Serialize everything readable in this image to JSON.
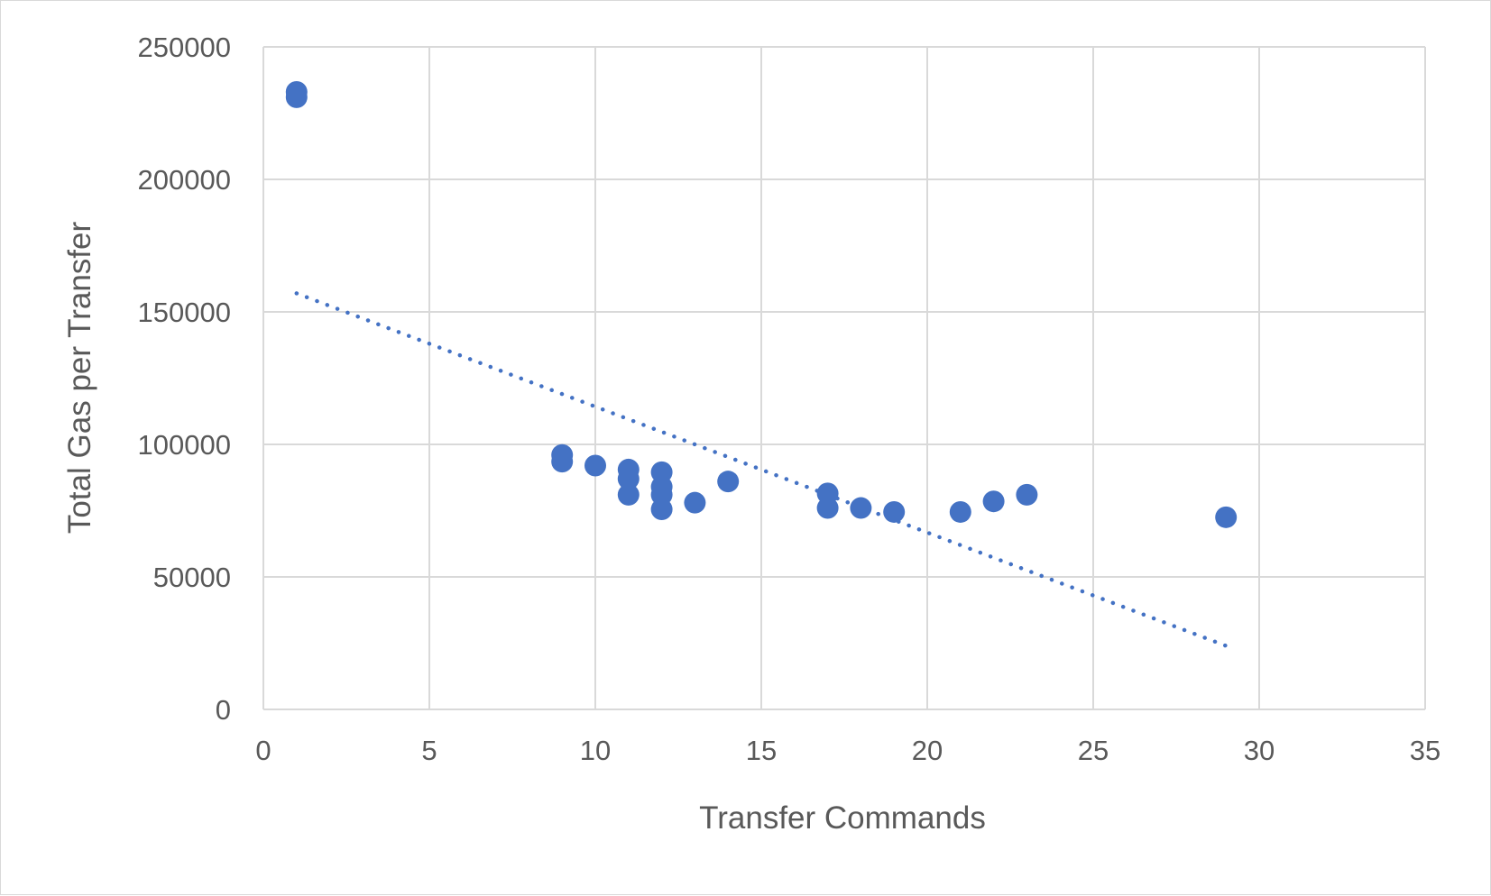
{
  "chart_data": {
    "type": "scatter",
    "title": "",
    "xlabel": "Transfer Commands",
    "ylabel": "Total Gas per Transfer",
    "xlim": [
      0,
      35
    ],
    "ylim": [
      0,
      250000
    ],
    "x_ticks": [
      "0",
      "5",
      "10",
      "15",
      "20",
      "25",
      "30",
      "35"
    ],
    "y_ticks": [
      "0",
      "50000",
      "100000",
      "150000",
      "200000",
      "250000"
    ],
    "grid": true,
    "legend": "none",
    "series": [
      {
        "color": "#4472c4",
        "marker": "circle",
        "points": [
          {
            "x": 1,
            "y": 233000
          },
          {
            "x": 1,
            "y": 231000
          },
          {
            "x": 9,
            "y": 96000
          },
          {
            "x": 9,
            "y": 93500
          },
          {
            "x": 10,
            "y": 92000
          },
          {
            "x": 11,
            "y": 90500
          },
          {
            "x": 11,
            "y": 87000
          },
          {
            "x": 11,
            "y": 81000
          },
          {
            "x": 12,
            "y": 89500
          },
          {
            "x": 12,
            "y": 84000
          },
          {
            "x": 12,
            "y": 81000
          },
          {
            "x": 12,
            "y": 75500
          },
          {
            "x": 13,
            "y": 78000
          },
          {
            "x": 14,
            "y": 86000
          },
          {
            "x": 17,
            "y": 81500
          },
          {
            "x": 17,
            "y": 76000
          },
          {
            "x": 18,
            "y": 76000
          },
          {
            "x": 19,
            "y": 74500
          },
          {
            "x": 21,
            "y": 74500
          },
          {
            "x": 22,
            "y": 78500
          },
          {
            "x": 23,
            "y": 81000
          },
          {
            "x": 29,
            "y": 72500
          }
        ]
      }
    ],
    "trendline": {
      "type": "linear",
      "style": "dotted",
      "color": "#4472c4",
      "x_start": 1,
      "y_start": 157000,
      "x_end": 29,
      "y_end": 24000
    }
  }
}
